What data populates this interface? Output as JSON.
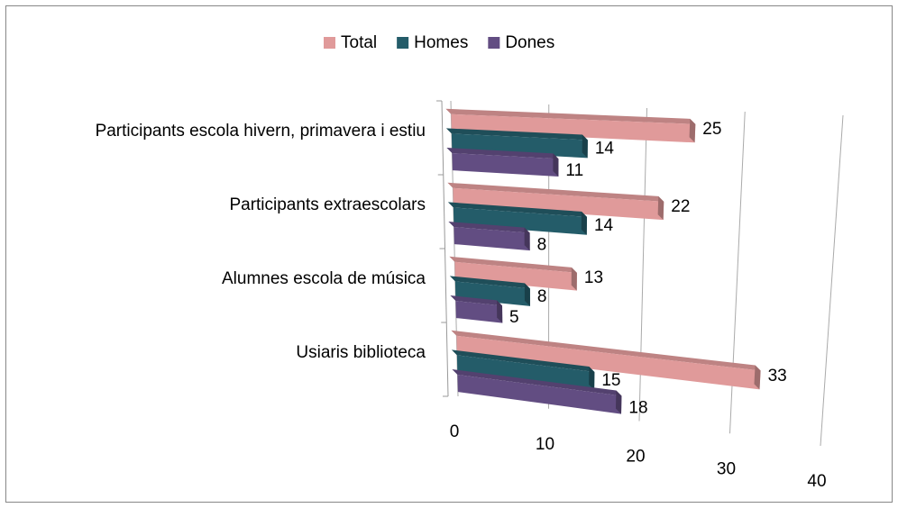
{
  "chart_data": {
    "type": "bar3d_horizontal",
    "categories": [
      "Participants escola hivern, primavera i estiu",
      "Participants extraescolars",
      "Alumnes escola de música",
      "Usiaris biblioteca"
    ],
    "series": [
      {
        "name": "Total",
        "color": "#e09a9a",
        "values": [
          25,
          22,
          13,
          33
        ]
      },
      {
        "name": "Homes",
        "color": "#245c69",
        "values": [
          14,
          14,
          8,
          15
        ]
      },
      {
        "name": "Dones",
        "color": "#624d82",
        "values": [
          11,
          8,
          5,
          18
        ]
      }
    ],
    "xlim": [
      0,
      40
    ],
    "xticks": [
      0,
      10,
      20,
      30,
      40
    ],
    "grid": true,
    "legend": "top"
  }
}
